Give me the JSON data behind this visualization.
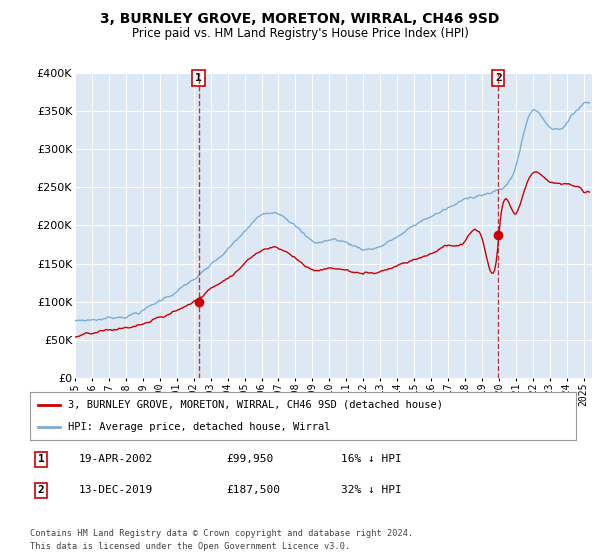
{
  "title": "3, BURNLEY GROVE, MORETON, WIRRAL, CH46 9SD",
  "subtitle": "Price paid vs. HM Land Registry's House Price Index (HPI)",
  "legend_line1": "3, BURNLEY GROVE, MORETON, WIRRAL, CH46 9SD (detached house)",
  "legend_line2": "HPI: Average price, detached house, Wirral",
  "transaction1_date": "19-APR-2002",
  "transaction1_price": "£99,950",
  "transaction1_hpi": "16% ↓ HPI",
  "transaction2_date": "13-DEC-2019",
  "transaction2_price": "£187,500",
  "transaction2_hpi": "32% ↓ HPI",
  "footnote1": "Contains HM Land Registry data © Crown copyright and database right 2024.",
  "footnote2": "This data is licensed under the Open Government Licence v3.0.",
  "hpi_color": "#7aadd4",
  "price_color": "#cc0000",
  "bg_color": "#dce9f5",
  "grid_color": "#ffffff",
  "ylim": [
    0,
    400000
  ],
  "yticks": [
    0,
    50000,
    100000,
    150000,
    200000,
    250000,
    300000,
    350000,
    400000
  ],
  "transaction1_x": 2002.29,
  "transaction1_y": 99950,
  "transaction2_x": 2019.96,
  "transaction2_y": 187500,
  "xmin": 1995,
  "xmax": 2025.5
}
